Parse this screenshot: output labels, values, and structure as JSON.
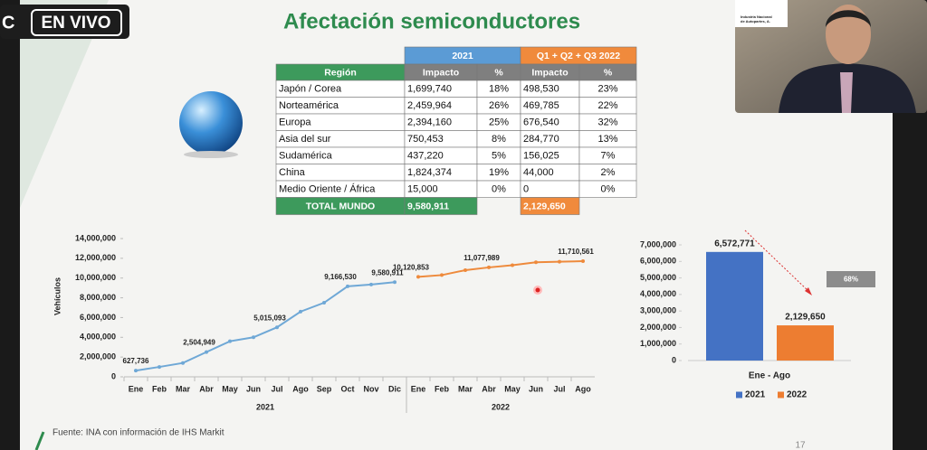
{
  "live_badge": {
    "logo": "C",
    "label": "EN VIVO"
  },
  "slide_title": "Afectación semiconductores",
  "webcam_caption": [
    "Industria Nacional",
    "de Autopartes, A."
  ],
  "table": {
    "group_headers": [
      "2021",
      "Q1 + Q2 + Q3 2022"
    ],
    "header": [
      "Región",
      "Impacto",
      "%",
      "Impacto",
      "%"
    ],
    "rows": [
      [
        "Japón / Corea",
        "1,699,740",
        "18%",
        "498,530",
        "23%"
      ],
      [
        "Norteamérica",
        "2,459,964",
        "26%",
        "469,785",
        "22%"
      ],
      [
        "Europa",
        "2,394,160",
        "25%",
        "676,540",
        "32%"
      ],
      [
        "Asia del sur",
        "750,453",
        "8%",
        "284,770",
        "13%"
      ],
      [
        "Sudamérica",
        "437,220",
        "5%",
        "156,025",
        "7%"
      ],
      [
        "China",
        "1,824,374",
        "19%",
        "44,000",
        "2%"
      ],
      [
        "Medio Oriente / África",
        "15,000",
        "0%",
        "0",
        "0%"
      ]
    ],
    "total": [
      "TOTAL MUNDO",
      "9,580,911",
      "2,129,650"
    ]
  },
  "chart_data": [
    {
      "type": "line",
      "ylabel": "Vehículos",
      "categories": [
        "Ene",
        "Feb",
        "Mar",
        "Abr",
        "May",
        "Jun",
        "Jul",
        "Ago",
        "Sep",
        "Oct",
        "Nov",
        "Dic",
        "Ene",
        "Feb",
        "Mar",
        "Abr",
        "May",
        "Jun",
        "Jul",
        "Ago"
      ],
      "groups": [
        "2021",
        "2022"
      ],
      "series": [
        {
          "name": "2021",
          "color": "#6fa8d6",
          "values": [
            627736,
            1000000,
            1400000,
            2504949,
            3600000,
            4000000,
            5015093,
            6600000,
            7500000,
            9166530,
            9350000,
            9580911,
            null,
            null,
            null,
            null,
            null,
            null,
            null,
            null
          ],
          "value_labels": [
            "627,736",
            null,
            null,
            "2,504,949",
            null,
            null,
            "5,015,093",
            null,
            null,
            "9,166,530",
            null,
            "9,580,911",
            null,
            null,
            null,
            null,
            null,
            null,
            null,
            null
          ]
        },
        {
          "name": "2022",
          "color": "#ee8a3c",
          "values": [
            null,
            null,
            null,
            null,
            null,
            null,
            null,
            null,
            null,
            null,
            null,
            null,
            10120853,
            10300000,
            10800000,
            11077989,
            11300000,
            11600000,
            11650000,
            11710561
          ],
          "value_labels": [
            null,
            null,
            null,
            null,
            null,
            null,
            null,
            null,
            null,
            null,
            null,
            null,
            "10,120,853",
            null,
            null,
            "11,077,989",
            null,
            null,
            null,
            "11,710,561"
          ]
        }
      ],
      "ylim": [
        0,
        14000000
      ],
      "yticks": [
        0,
        {
          "value": 2000000,
          "label": "2,000,000"
        },
        {
          "value": 4000000,
          "label": "4,000,000"
        },
        {
          "value": 6000000,
          "label": "6,000,000"
        },
        {
          "value": 8000000,
          "label": "8,000,000"
        },
        {
          "value": 10000000,
          "label": "10,000,000"
        },
        {
          "value": 12000000,
          "label": "12,000,000"
        },
        {
          "value": 14000000,
          "label": "14,000,000"
        }
      ]
    },
    {
      "type": "bar",
      "categories": [
        "Ene - Ago"
      ],
      "series": [
        {
          "name": "2021",
          "color": "#4472c4",
          "values": [
            6572771
          ],
          "value_labels": [
            "6,572,771"
          ]
        },
        {
          "name": "2022",
          "color": "#ed7d31",
          "values": [
            2129650
          ],
          "value_labels": [
            "2,129,650"
          ]
        }
      ],
      "ylim": [
        0,
        7000000
      ],
      "yticks": [
        0,
        {
          "value": 1000000,
          "label": "1,000,000"
        },
        {
          "value": 2000000,
          "label": "2,000,000"
        },
        {
          "value": 3000000,
          "label": "3,000,000"
        },
        {
          "value": 4000000,
          "label": "4,000,000"
        },
        {
          "value": 5000000,
          "label": "5,000,000"
        },
        {
          "value": 6000000,
          "label": "6,000,000"
        },
        {
          "value": 7000000,
          "label": "7,000,000"
        }
      ],
      "annotation": "68%",
      "legend": "bottom"
    }
  ],
  "footer": {
    "source": "Fuente:  INA con información de IHS Markit",
    "page": "17"
  }
}
